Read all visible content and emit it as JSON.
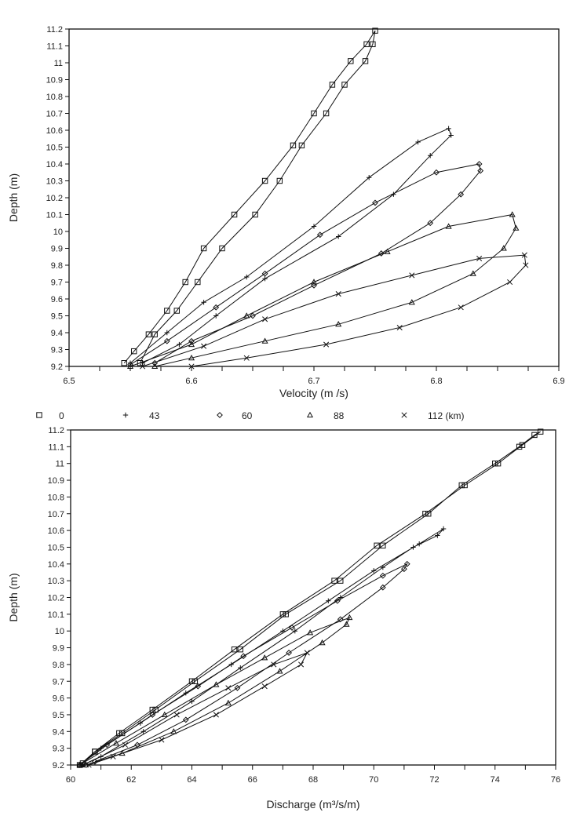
{
  "legend": {
    "items": [
      {
        "marker": "square",
        "label": "0"
      },
      {
        "marker": "plus",
        "label": "43"
      },
      {
        "marker": "diamond",
        "label": "60"
      },
      {
        "marker": "triangle",
        "label": "88"
      },
      {
        "marker": "cross",
        "label": "112 (km)"
      }
    ]
  },
  "chart_data": [
    {
      "type": "line",
      "title": "",
      "xlabel": "Velocity  (m /s)",
      "ylabel": "Depth  (m)",
      "xlim": [
        6.5,
        6.9
      ],
      "ylim": [
        9.2,
        11.2
      ],
      "xticks": [
        "6.5",
        "6.6",
        "6.7",
        "6.8",
        "6.9"
      ],
      "yticks": [
        "9.2",
        "9.3",
        "9.4",
        "9.5",
        "9.6",
        "9.7",
        "9.8",
        "9.9",
        "10",
        "10.1",
        "10.2",
        "10.3",
        "10.4",
        "10.5",
        "10.6",
        "10.7",
        "10.8",
        "10.9",
        "11",
        "11.1",
        "11.2"
      ],
      "grid": false,
      "series": [
        {
          "name": "0",
          "marker": "square",
          "points": [
            [
              6.545,
              9.22
            ],
            [
              6.553,
              9.29
            ],
            [
              6.565,
              9.39
            ],
            [
              6.58,
              9.53
            ],
            [
              6.595,
              9.7
            ],
            [
              6.61,
              9.9
            ],
            [
              6.635,
              10.1
            ],
            [
              6.66,
              10.3
            ],
            [
              6.683,
              10.51
            ],
            [
              6.7,
              10.7
            ],
            [
              6.715,
              10.87
            ],
            [
              6.73,
              11.01
            ],
            [
              6.743,
              11.11
            ],
            [
              6.75,
              11.19
            ],
            [
              6.748,
              11.11
            ],
            [
              6.742,
              11.01
            ],
            [
              6.725,
              10.87
            ],
            [
              6.71,
              10.7
            ],
            [
              6.69,
              10.51
            ],
            [
              6.672,
              10.3
            ],
            [
              6.652,
              10.1
            ],
            [
              6.625,
              9.9
            ],
            [
              6.605,
              9.7
            ],
            [
              6.588,
              9.53
            ],
            [
              6.57,
              9.39
            ],
            [
              6.558,
              9.22
            ]
          ]
        },
        {
          "name": "43",
          "marker": "plus",
          "points": [
            [
              6.55,
              9.22
            ],
            [
              6.58,
              9.4
            ],
            [
              6.61,
              9.58
            ],
            [
              6.645,
              9.73
            ],
            [
              6.7,
              10.03
            ],
            [
              6.745,
              10.32
            ],
            [
              6.785,
              10.53
            ],
            [
              6.81,
              10.61
            ],
            [
              6.812,
              10.57
            ],
            [
              6.795,
              10.45
            ],
            [
              6.765,
              10.22
            ],
            [
              6.72,
              9.97
            ],
            [
              6.66,
              9.72
            ],
            [
              6.62,
              9.5
            ],
            [
              6.59,
              9.33
            ],
            [
              6.56,
              9.22
            ]
          ]
        },
        {
          "name": "60",
          "marker": "diamond",
          "points": [
            [
              6.55,
              9.21
            ],
            [
              6.58,
              9.35
            ],
            [
              6.62,
              9.55
            ],
            [
              6.66,
              9.75
            ],
            [
              6.705,
              9.98
            ],
            [
              6.75,
              10.17
            ],
            [
              6.8,
              10.35
            ],
            [
              6.835,
              10.4
            ],
            [
              6.836,
              10.36
            ],
            [
              6.82,
              10.22
            ],
            [
              6.795,
              10.05
            ],
            [
              6.755,
              9.87
            ],
            [
              6.7,
              9.68
            ],
            [
              6.65,
              9.5
            ],
            [
              6.6,
              9.35
            ],
            [
              6.57,
              9.22
            ]
          ]
        },
        {
          "name": "88",
          "marker": "triangle",
          "points": [
            [
              6.55,
              9.2
            ],
            [
              6.6,
              9.33
            ],
            [
              6.645,
              9.5
            ],
            [
              6.7,
              9.7
            ],
            [
              6.76,
              9.88
            ],
            [
              6.81,
              10.03
            ],
            [
              6.862,
              10.1
            ],
            [
              6.865,
              10.02
            ],
            [
              6.855,
              9.9
            ],
            [
              6.83,
              9.75
            ],
            [
              6.78,
              9.58
            ],
            [
              6.72,
              9.45
            ],
            [
              6.66,
              9.35
            ],
            [
              6.6,
              9.25
            ],
            [
              6.57,
              9.2
            ]
          ]
        },
        {
          "name": "112",
          "marker": "cross",
          "points": [
            [
              6.56,
              9.2
            ],
            [
              6.61,
              9.32
            ],
            [
              6.66,
              9.48
            ],
            [
              6.72,
              9.63
            ],
            [
              6.78,
              9.74
            ],
            [
              6.835,
              9.84
            ],
            [
              6.872,
              9.86
            ],
            [
              6.873,
              9.8
            ],
            [
              6.86,
              9.7
            ],
            [
              6.82,
              9.55
            ],
            [
              6.77,
              9.43
            ],
            [
              6.71,
              9.33
            ],
            [
              6.645,
              9.25
            ],
            [
              6.6,
              9.2
            ]
          ]
        }
      ]
    },
    {
      "type": "line",
      "title": "",
      "xlabel": "Discharge  (m³/s/m)",
      "ylabel": "Depth  (m)",
      "xlim": [
        60,
        76
      ],
      "ylim": [
        9.2,
        11.2
      ],
      "xticks": [
        "60",
        "62",
        "64",
        "66",
        "68",
        "70",
        "72",
        "74",
        "76"
      ],
      "yticks": [
        "9.2",
        "9.3",
        "9.4",
        "9.5",
        "9.6",
        "9.7",
        "9.8",
        "9.9",
        "10",
        "10.1",
        "10.2",
        "10.3",
        "10.4",
        "10.5",
        "10.6",
        "10.7",
        "10.8",
        "10.9",
        "11",
        "11.1",
        "11.2"
      ],
      "grid": false,
      "series": [
        {
          "name": "0",
          "marker": "square",
          "points": [
            [
              60.3,
              9.2
            ],
            [
              60.8,
              9.28
            ],
            [
              61.6,
              9.39
            ],
            [
              62.7,
              9.53
            ],
            [
              64,
              9.7
            ],
            [
              65.4,
              9.89
            ],
            [
              67,
              10.1
            ],
            [
              68.7,
              10.3
            ],
            [
              70.1,
              10.51
            ],
            [
              71.7,
              10.7
            ],
            [
              73,
              10.87
            ],
            [
              74.1,
              11.0
            ],
            [
              74.9,
              11.11
            ],
            [
              75.5,
              11.19
            ],
            [
              75.3,
              11.17
            ],
            [
              74.8,
              11.1
            ],
            [
              74.0,
              11.0
            ],
            [
              72.9,
              10.87
            ],
            [
              71.8,
              10.7
            ],
            [
              70.3,
              10.51
            ],
            [
              68.9,
              10.3
            ],
            [
              67.1,
              10.1
            ],
            [
              65.6,
              9.89
            ],
            [
              64.1,
              9.7
            ],
            [
              62.8,
              9.53
            ],
            [
              61.7,
              9.39
            ],
            [
              60.8,
              9.28
            ],
            [
              60.4,
              9.21
            ]
          ]
        },
        {
          "name": "43",
          "marker": "plus",
          "points": [
            [
              60.3,
              9.2
            ],
            [
              61,
              9.3
            ],
            [
              62.3,
              9.45
            ],
            [
              63.8,
              9.63
            ],
            [
              65.3,
              9.8
            ],
            [
              67,
              10.0
            ],
            [
              68.5,
              10.18
            ],
            [
              70.0,
              10.36
            ],
            [
              71.5,
              10.52
            ],
            [
              72.3,
              10.61
            ],
            [
              72.1,
              10.57
            ],
            [
              71.3,
              10.5
            ],
            [
              70.3,
              10.38
            ],
            [
              68.9,
              10.2
            ],
            [
              67.4,
              10.0
            ],
            [
              65.6,
              9.78
            ],
            [
              64.0,
              9.58
            ],
            [
              62.4,
              9.4
            ],
            [
              61,
              9.25
            ],
            [
              60.4,
              9.2
            ]
          ]
        },
        {
          "name": "60",
          "marker": "diamond",
          "points": [
            [
              60.3,
              9.2
            ],
            [
              61.2,
              9.32
            ],
            [
              62.7,
              9.5
            ],
            [
              64.2,
              9.67
            ],
            [
              65.7,
              9.85
            ],
            [
              67.3,
              10.02
            ],
            [
              68.8,
              10.18
            ],
            [
              70.3,
              10.33
            ],
            [
              71.1,
              10.4
            ],
            [
              71,
              10.37
            ],
            [
              70.3,
              10.26
            ],
            [
              68.9,
              10.07
            ],
            [
              67.2,
              9.87
            ],
            [
              65.5,
              9.66
            ],
            [
              63.8,
              9.47
            ],
            [
              62.2,
              9.32
            ],
            [
              60.8,
              9.22
            ]
          ]
        },
        {
          "name": "88",
          "marker": "triangle",
          "points": [
            [
              60.3,
              9.2
            ],
            [
              61.5,
              9.33
            ],
            [
              63.1,
              9.5
            ],
            [
              64.8,
              9.68
            ],
            [
              66.4,
              9.84
            ],
            [
              67.9,
              9.99
            ],
            [
              69.2,
              10.08
            ],
            [
              69.1,
              10.04
            ],
            [
              68.3,
              9.93
            ],
            [
              66.9,
              9.76
            ],
            [
              65.2,
              9.57
            ],
            [
              63.4,
              9.4
            ],
            [
              61.7,
              9.27
            ],
            [
              60.5,
              9.2
            ]
          ]
        },
        {
          "name": "112",
          "marker": "cross",
          "points": [
            [
              60.4,
              9.2
            ],
            [
              61.8,
              9.32
            ],
            [
              63.5,
              9.5
            ],
            [
              65.2,
              9.66
            ],
            [
              66.7,
              9.8
            ],
            [
              67.8,
              9.87
            ],
            [
              67.6,
              9.8
            ],
            [
              66.4,
              9.67
            ],
            [
              64.8,
              9.5
            ],
            [
              63.0,
              9.35
            ],
            [
              61.4,
              9.25
            ],
            [
              60.6,
              9.2
            ]
          ]
        }
      ]
    }
  ]
}
